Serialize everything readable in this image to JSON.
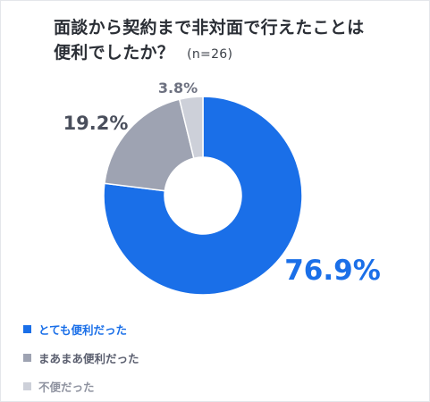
{
  "title": {
    "line1": "面談から契約まで非対面で行えたことは",
    "line2": "便利でしたか？",
    "note": "(n=26)"
  },
  "chart_data": {
    "type": "pie",
    "style": "donut",
    "categories": [
      "とても便利だった",
      "まあまあ便利だった",
      "不便だった"
    ],
    "values": [
      76.9,
      19.2,
      3.8
    ],
    "data_labels": [
      "76.9%",
      "19.2%",
      "3.8%"
    ],
    "colors": [
      "#1a6fe8",
      "#9ea3b2",
      "#cdd0d9"
    ],
    "legend_text_colors": [
      "#1a6fe8",
      "#5c6070",
      "#8f93a0"
    ],
    "label_colors": [
      "#1a6fe8",
      "#4a4f5c",
      "#6d7180"
    ],
    "legend_position": "bottom-left",
    "start_angle": "top, clockwise"
  }
}
